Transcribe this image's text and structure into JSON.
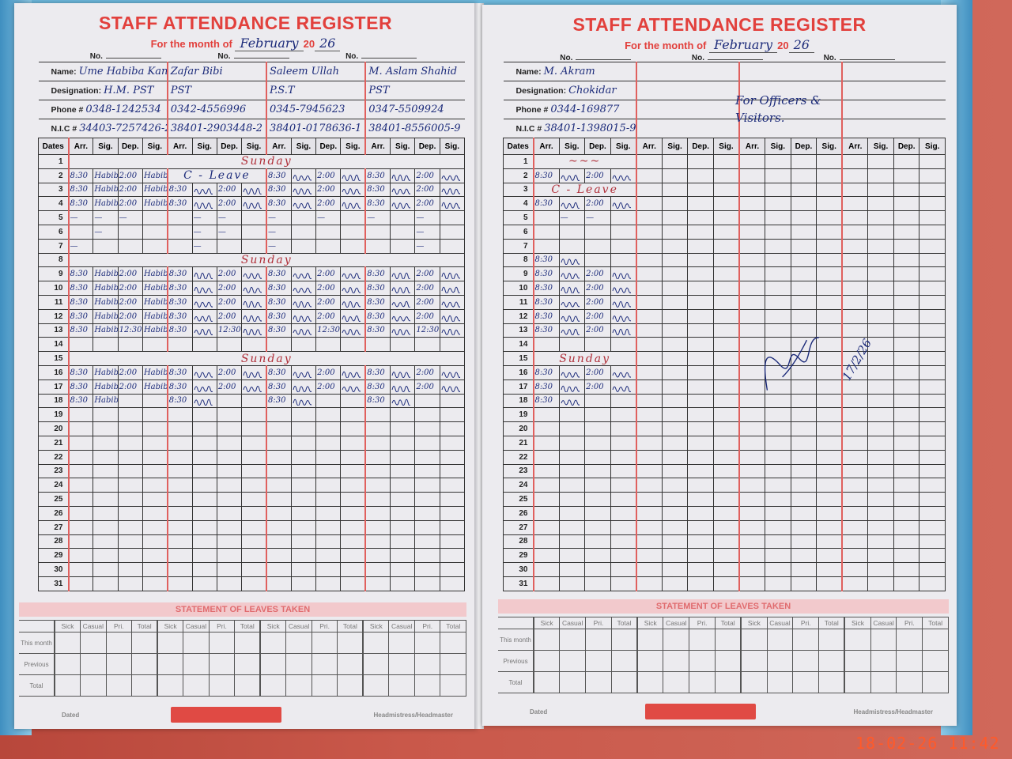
{
  "timestamp": "18-02-26  11:42",
  "colors": {
    "print_red": "#e2403c",
    "ink_blue": "#1c2b7a",
    "ink_red": "#b0303a",
    "cover_blue": "#5fb0d6",
    "timestamp": "#ff5a2a"
  },
  "pages": [
    {
      "title": "STAFF ATTENDANCE REGISTER",
      "month_label": "For the month of",
      "month": "February",
      "year_prefix": "20",
      "year_suffix": "26",
      "no_label": "No.",
      "labels": {
        "name": "Name:",
        "designation": "Designation:",
        "phone": "Phone #",
        "nic": "N.I.C #"
      },
      "col_headers": {
        "dates": "Dates",
        "arr": "Arr.",
        "sig": "Sig.",
        "dep": "Dep."
      },
      "staff": [
        {
          "name": "Ume Habiba Kanwal",
          "designation": "H.M. PST",
          "phone": "0348-1242534",
          "nic": "34403-7257426-2"
        },
        {
          "name": "Zafar Bibi",
          "designation": "PST",
          "phone": "0342-4556996",
          "nic": "38401-2903448-2"
        },
        {
          "name": "Saleem Ullah",
          "designation": "P.S.T",
          "phone": "0345-7945623",
          "nic": "38401-0178636-1"
        },
        {
          "name": "M. Aslam Shahid",
          "designation": "PST",
          "phone": "0347-5509924",
          "nic": "38401-8556005-9"
        }
      ],
      "rows": [
        {
          "date": "1",
          "note": "Sunday"
        },
        {
          "date": "2",
          "entries": [
            {
              "arr": "8:30",
              "sig": "Habiba",
              "dep": "2:00",
              "dep_sig": "Habiba"
            },
            {
              "note": "C - Leave"
            },
            {
              "arr": "8:30",
              "sig": true,
              "dep": "2:00",
              "dep_sig": true
            },
            {
              "arr": "8:30",
              "sig": true,
              "dep": "2:00",
              "dep_sig": true
            }
          ]
        },
        {
          "date": "3",
          "entries": [
            {
              "arr": "8:30",
              "sig": "Habiba",
              "dep": "2:00",
              "dep_sig": "Habiba"
            },
            {
              "arr": "8:30",
              "sig": true,
              "dep": "2:00",
              "dep_sig": true
            },
            {
              "arr": "8:30",
              "sig": true,
              "dep": "2:00",
              "dep_sig": true
            },
            {
              "arr": "8:30",
              "sig": true,
              "dep": "2:00",
              "dep_sig": true
            }
          ]
        },
        {
          "date": "4",
          "entries": [
            {
              "arr": "8:30",
              "sig": "Habiba",
              "dep": "2:00",
              "dep_sig": "Habiba"
            },
            {
              "arr": "8:30",
              "sig": true,
              "dep": "2:00",
              "dep_sig": true
            },
            {
              "arr": "8:30",
              "sig": true,
              "dep": "2:00",
              "dep_sig": true
            },
            {
              "arr": "8:30",
              "sig": true,
              "dep": "2:00",
              "dep_sig": true
            }
          ]
        },
        {
          "date": "5",
          "entries": [
            {
              "arr": "—",
              "sig": "—",
              "dep": "—"
            },
            {
              "sig": "—",
              "dep": "—"
            },
            {
              "arr": "—",
              "dep": "—"
            },
            {
              "arr": "—",
              "dep": "—"
            }
          ]
        },
        {
          "date": "6",
          "entries": [
            {
              "sig": "—"
            },
            {
              "sig": "—",
              "dep": "—"
            },
            {
              "arr": "—"
            },
            {
              "dep": "—"
            }
          ]
        },
        {
          "date": "7",
          "entries": [
            {
              "arr": "—"
            },
            {
              "sig": "—"
            },
            {
              "arr": "—"
            },
            {
              "dep": "—"
            }
          ]
        },
        {
          "date": "8",
          "note": "Sunday"
        },
        {
          "date": "9",
          "entries": [
            {
              "arr": "8:30",
              "sig": "Habiba",
              "dep": "2:00",
              "dep_sig": "Habiba"
            },
            {
              "arr": "8:30",
              "sig": true,
              "dep": "2:00",
              "dep_sig": true
            },
            {
              "arr": "8:30",
              "sig": true,
              "dep": "2:00",
              "dep_sig": true
            },
            {
              "arr": "8:30",
              "sig": true,
              "dep": "2:00",
              "dep_sig": true
            }
          ]
        },
        {
          "date": "10",
          "entries": [
            {
              "arr": "8:30",
              "sig": "Habiba",
              "dep": "2:00",
              "dep_sig": "Habiba"
            },
            {
              "arr": "8:30",
              "sig": true,
              "dep": "2:00",
              "dep_sig": true
            },
            {
              "arr": "8:30",
              "sig": true,
              "dep": "2:00",
              "dep_sig": true
            },
            {
              "arr": "8:30",
              "sig": true,
              "dep": "2:00",
              "dep_sig": true
            }
          ]
        },
        {
          "date": "11",
          "entries": [
            {
              "arr": "8:30",
              "sig": "Habiba",
              "dep": "2:00",
              "dep_sig": "Habiba"
            },
            {
              "arr": "8:30",
              "sig": true,
              "dep": "2:00",
              "dep_sig": true
            },
            {
              "arr": "8:30",
              "sig": true,
              "dep": "2:00",
              "dep_sig": true
            },
            {
              "arr": "8:30",
              "sig": true,
              "dep": "2:00",
              "dep_sig": true
            }
          ]
        },
        {
          "date": "12",
          "entries": [
            {
              "arr": "8:30",
              "sig": "Habiba",
              "dep": "2:00",
              "dep_sig": "Habiba"
            },
            {
              "arr": "8:30",
              "sig": true,
              "dep": "2:00",
              "dep_sig": true
            },
            {
              "arr": "8:30",
              "sig": true,
              "dep": "2:00",
              "dep_sig": true
            },
            {
              "arr": "8:30",
              "sig": true,
              "dep": "2:00",
              "dep_sig": true
            }
          ]
        },
        {
          "date": "13",
          "entries": [
            {
              "arr": "8:30",
              "sig": "Habiba",
              "dep": "12:30",
              "dep_sig": "Habiba"
            },
            {
              "arr": "8:30",
              "sig": true,
              "dep": "12:30",
              "dep_sig": true
            },
            {
              "arr": "8:30",
              "sig": true,
              "dep": "12:30",
              "dep_sig": true
            },
            {
              "arr": "8:30",
              "sig": true,
              "dep": "12:30",
              "dep_sig": true
            }
          ]
        },
        {
          "date": "14"
        },
        {
          "date": "15",
          "note": "Sunday"
        },
        {
          "date": "16",
          "entries": [
            {
              "arr": "8:30",
              "sig": "Habiba",
              "dep": "2:00",
              "dep_sig": "Habiba"
            },
            {
              "arr": "8:30",
              "sig": true,
              "dep": "2:00",
              "dep_sig": true
            },
            {
              "arr": "8:30",
              "sig": true,
              "dep": "2:00",
              "dep_sig": true
            },
            {
              "arr": "8:30",
              "sig": true,
              "dep": "2:00",
              "dep_sig": true
            }
          ]
        },
        {
          "date": "17",
          "entries": [
            {
              "arr": "8:30",
              "sig": "Habiba",
              "dep": "2:00",
              "dep_sig": "Habiba"
            },
            {
              "arr": "8:30",
              "sig": true,
              "dep": "2:00",
              "dep_sig": true
            },
            {
              "arr": "8:30",
              "sig": true,
              "dep": "2:00",
              "dep_sig": true
            },
            {
              "arr": "8:30",
              "sig": true,
              "dep": "2:00",
              "dep_sig": true
            }
          ]
        },
        {
          "date": "18",
          "entries": [
            {
              "arr": "8:30",
              "sig": "Habiba"
            },
            {
              "arr": "8:30",
              "sig": true
            },
            {
              "arr": "8:30",
              "sig": true
            },
            {
              "arr": "8:30",
              "sig": true
            }
          ]
        },
        {
          "date": "19"
        },
        {
          "date": "20"
        },
        {
          "date": "21"
        },
        {
          "date": "22"
        },
        {
          "date": "23"
        },
        {
          "date": "24"
        },
        {
          "date": "25"
        },
        {
          "date": "26"
        },
        {
          "date": "27"
        },
        {
          "date": "28"
        },
        {
          "date": "29"
        },
        {
          "date": "30"
        },
        {
          "date": "31"
        }
      ],
      "leaves": {
        "title": "STATEMENT OF LEAVES TAKEN",
        "cols": [
          "Sick",
          "Casual",
          "Pri.",
          "Total"
        ],
        "rows": [
          "This month",
          "Previous",
          "Total"
        ]
      },
      "footer": {
        "dated": "Dated",
        "signatory": "Headmistress/Headmaster"
      }
    },
    {
      "title": "STAFF ATTENDANCE REGISTER",
      "month_label": "For the month of",
      "month": "February",
      "year_prefix": "20",
      "year_suffix": "26",
      "no_label": "No.",
      "labels": {
        "name": "Name:",
        "designation": "Designation:",
        "phone": "Phone #",
        "nic": "N.I.C #"
      },
      "col_headers": {
        "dates": "Dates",
        "arr": "Arr.",
        "sig": "Sig.",
        "dep": "Dep."
      },
      "staff": [
        {
          "name": "M. Akram",
          "designation": "Chokidar",
          "phone": "0344-169877",
          "nic": "38401-1398015-9"
        },
        {},
        {},
        {}
      ],
      "side_note": "For Officers & Visitors.",
      "signature_date": "17/2/26",
      "rows": [
        {
          "date": "1",
          "entries": [
            {
              "note": "~~~"
            },
            {},
            {},
            {}
          ]
        },
        {
          "date": "2",
          "entries": [
            {
              "arr": "8:30",
              "sig": true,
              "dep": "2:00",
              "dep_sig": true
            },
            {},
            {},
            {}
          ]
        },
        {
          "date": "3",
          "entries": [
            {
              "note": "C - Leave"
            },
            {},
            {},
            {}
          ]
        },
        {
          "date": "4",
          "entries": [
            {
              "arr": "8:30",
              "sig": true,
              "dep": "2:00",
              "dep_sig": true
            },
            {},
            {},
            {}
          ]
        },
        {
          "date": "5",
          "entries": [
            {
              "sig": "—",
              "dep": "—"
            },
            {},
            {},
            {}
          ]
        },
        {
          "date": "6"
        },
        {
          "date": "7"
        },
        {
          "date": "8",
          "entries": [
            {
              "arr": "8:30",
              "sig": true
            },
            {},
            {},
            {}
          ]
        },
        {
          "date": "9",
          "entries": [
            {
              "arr": "8:30",
              "sig": true,
              "dep": "2:00",
              "dep_sig": true
            },
            {},
            {},
            {}
          ]
        },
        {
          "date": "10",
          "entries": [
            {
              "arr": "8:30",
              "sig": true,
              "dep": "2:00",
              "dep_sig": true
            },
            {},
            {},
            {}
          ]
        },
        {
          "date": "11",
          "entries": [
            {
              "arr": "8:30",
              "sig": true,
              "dep": "2:00",
              "dep_sig": true
            },
            {},
            {},
            {}
          ]
        },
        {
          "date": "12",
          "entries": [
            {
              "arr": "8:30",
              "sig": true,
              "dep": "2:00",
              "dep_sig": true
            },
            {},
            {},
            {}
          ]
        },
        {
          "date": "13",
          "entries": [
            {
              "arr": "8:30",
              "sig": true,
              "dep": "2:00",
              "dep_sig": true
            },
            {},
            {},
            {}
          ]
        },
        {
          "date": "14"
        },
        {
          "date": "15",
          "entries": [
            {
              "note": "Sunday"
            },
            {},
            {},
            {}
          ]
        },
        {
          "date": "16",
          "entries": [
            {
              "arr": "8:30",
              "sig": true,
              "dep": "2:00",
              "dep_sig": true
            },
            {},
            {},
            {}
          ]
        },
        {
          "date": "17",
          "entries": [
            {
              "arr": "8:30",
              "sig": true,
              "dep": "2:00",
              "dep_sig": true
            },
            {},
            {},
            {}
          ]
        },
        {
          "date": "18",
          "entries": [
            {
              "arr": "8:30",
              "sig": true
            },
            {},
            {},
            {}
          ]
        },
        {
          "date": "19"
        },
        {
          "date": "20"
        },
        {
          "date": "21"
        },
        {
          "date": "22"
        },
        {
          "date": "23"
        },
        {
          "date": "24"
        },
        {
          "date": "25"
        },
        {
          "date": "26"
        },
        {
          "date": "27"
        },
        {
          "date": "28"
        },
        {
          "date": "29"
        },
        {
          "date": "30"
        },
        {
          "date": "31"
        }
      ],
      "leaves": {
        "title": "STATEMENT OF LEAVES TAKEN",
        "cols": [
          "Sick",
          "Casual",
          "Pri.",
          "Total"
        ],
        "rows": [
          "This month",
          "Previous",
          "Total"
        ]
      },
      "footer": {
        "dated": "Dated",
        "signatory": "Headmistress/Headmaster"
      }
    }
  ]
}
